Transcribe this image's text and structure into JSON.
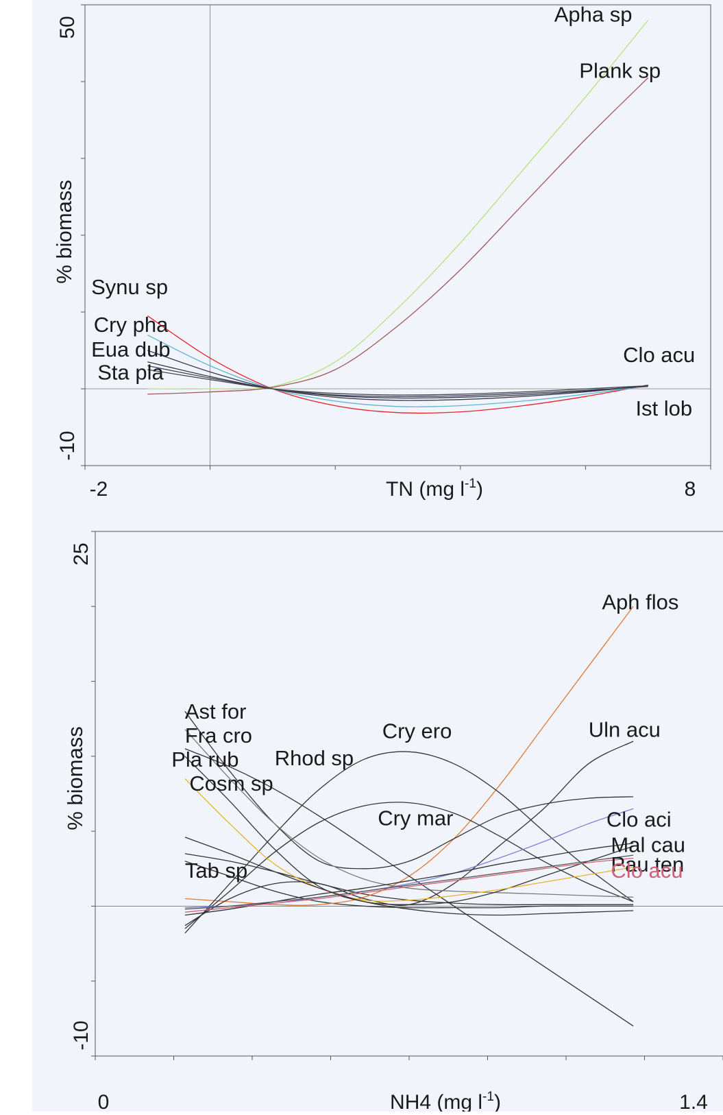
{
  "chart_data": [
    {
      "type": "line",
      "xlabel": "TN (mg l-1)",
      "xlabel_parts": {
        "main": "TN (mg l",
        "sup": "-1",
        "end": ")"
      },
      "ylabel": "% biomass",
      "xlim": [
        -2,
        8
      ],
      "ylim": [
        -10,
        50
      ],
      "x_tick_labels": [
        "-2",
        "8"
      ],
      "y_tick_labels": [
        "-10",
        "50"
      ],
      "reference_lines": {
        "x": 0,
        "y": 0
      },
      "series": [
        {
          "name": "Apha sp",
          "color": "#b6e27a",
          "x": [
            -1,
            0,
            1,
            2,
            3,
            4,
            5,
            6,
            7
          ],
          "y": [
            0,
            0,
            0.3,
            3.5,
            10.5,
            19,
            28.5,
            38,
            48
          ]
        },
        {
          "name": "Plank sp",
          "color": "#a0585c",
          "x": [
            -1,
            0,
            1,
            2,
            3,
            4,
            5,
            6,
            7
          ],
          "y": [
            -0.7,
            -0.4,
            0.2,
            2.5,
            8.2,
            15.5,
            24,
            32.5,
            40.5
          ]
        },
        {
          "name": "Synu sp",
          "color": "#e8202a",
          "x": [
            -1,
            0,
            1,
            2,
            3,
            4,
            5,
            6,
            7
          ],
          "y": [
            9.5,
            4,
            0,
            -2.2,
            -3.1,
            -3,
            -2.2,
            -1,
            0.5
          ]
        },
        {
          "name": "Cry pha",
          "color": "#5fb4cf",
          "x": [
            -1,
            0,
            1,
            2,
            3,
            4,
            5,
            6,
            7
          ],
          "y": [
            7,
            3,
            0,
            -1.6,
            -2.3,
            -2.2,
            -1.6,
            -0.7,
            0.4
          ]
        },
        {
          "name": "Eua dub",
          "color": "#3a3a50",
          "x": [
            -1,
            0,
            1,
            2,
            3,
            4,
            5,
            6,
            7
          ],
          "y": [
            5,
            2.2,
            0,
            -1.1,
            -1.5,
            -1.4,
            -1,
            -0.4,
            0.4
          ]
        },
        {
          "name": "Sta pla",
          "color": "#333333",
          "x": [
            -1,
            0,
            1,
            2,
            3,
            4,
            5,
            6,
            7
          ],
          "y": [
            3.5,
            1.6,
            0,
            -0.9,
            -1.2,
            -1.1,
            -0.8,
            -0.3,
            0.4
          ]
        },
        {
          "name": "Ist lob",
          "color": "#3b3b5e",
          "x": [
            -1,
            0,
            1,
            2,
            3,
            4,
            5,
            6,
            7
          ],
          "y": [
            3,
            1.4,
            0,
            -0.8,
            -1,
            -0.9,
            -0.6,
            -0.2,
            0.3
          ]
        },
        {
          "name": "Clo acu",
          "color": "#444444",
          "x": [
            -1,
            0,
            1,
            2,
            3,
            4,
            5,
            6,
            7
          ],
          "y": [
            2.5,
            1.2,
            0,
            -0.6,
            -0.8,
            -0.7,
            -0.4,
            0,
            0.4
          ]
        }
      ],
      "labels": [
        {
          "text": "Apha sp",
          "x": 5.5,
          "y": 47.8
        },
        {
          "text": "Plank sp",
          "x": 5.9,
          "y": 40.5
        },
        {
          "text": "Synu sp",
          "x": -1.9,
          "y": 12.3
        },
        {
          "text": "Cry pha",
          "x": -1.86,
          "y": 7.4
        },
        {
          "text": "Eua dub",
          "x": -1.9,
          "y": 4.2
        },
        {
          "text": "Sta pla",
          "x": -1.8,
          "y": 1.2
        },
        {
          "text": "Clo acu",
          "x": 6.6,
          "y": 3.5
        },
        {
          "text": "Ist lob",
          "x": 6.8,
          "y": -3.5
        }
      ]
    },
    {
      "type": "line",
      "xlabel": "NH4 (mg l-1)",
      "xlabel_parts": {
        "main": "NH4 (mg l",
        "sup": "-1",
        "end": ")"
      },
      "ylabel": "% biomass",
      "xlim": [
        0,
        1.4
      ],
      "ylim": [
        -10,
        25
      ],
      "x_tick_labels": [
        "0",
        "1.4"
      ],
      "y_tick_labels": [
        "-10",
        "25"
      ],
      "reference_lines": {
        "y": 0
      },
      "series": [
        {
          "name": "Aph flos",
          "color": "#e07830",
          "x": [
            0.2,
            0.3,
            0.4,
            0.5,
            0.6,
            0.7,
            0.8,
            0.9,
            1.0,
            1.1,
            1.2
          ],
          "y": [
            0.5,
            0.3,
            0.1,
            0.1,
            0.6,
            2,
            4.5,
            8,
            12,
            16,
            20
          ]
        },
        {
          "name": "Uln acu",
          "color": "#333333",
          "x": [
            0.2,
            0.3,
            0.4,
            0.5,
            0.6,
            0.7,
            0.8,
            0.9,
            1.0,
            1.1,
            1.2
          ],
          "y": [
            -1.3,
            0.5,
            1.5,
            1.5,
            0.5,
            0.1,
            1.5,
            4,
            6.5,
            9.5,
            11
          ]
        },
        {
          "name": "Cry ero",
          "color": "#333333",
          "x": [
            0.2,
            0.3,
            0.4,
            0.5,
            0.6,
            0.7,
            0.8,
            0.9,
            1.0,
            1.1,
            1.2
          ],
          "y": [
            -1.8,
            1.5,
            4.8,
            7.8,
            9.8,
            10.3,
            9.5,
            7.6,
            5,
            2.5,
            0.3
          ]
        },
        {
          "name": "Cry mar",
          "color": "#333333",
          "x": [
            0.2,
            0.3,
            0.4,
            0.5,
            0.6,
            0.7,
            0.8,
            0.9,
            1.0,
            1.1,
            1.2
          ],
          "y": [
            -1.5,
            1,
            3.6,
            5.6,
            6.7,
            6.9,
            6.2,
            4.7,
            3,
            1.5,
            0.3
          ]
        },
        {
          "name": "Ast for",
          "color": "#333333",
          "x": [
            0.2,
            0.3,
            0.4,
            0.5,
            0.6,
            0.7,
            0.8,
            0.9,
            1.0,
            1.1,
            1.2
          ],
          "y": [
            13,
            9,
            5.5,
            3,
            2.5,
            3,
            4.5,
            6,
            6.8,
            7.2,
            7.3
          ]
        },
        {
          "name": "Fra cro",
          "color": "#7a7a7a",
          "x": [
            0.2,
            0.3,
            0.4,
            0.5,
            0.6,
            0.7,
            0.8,
            0.9,
            1.0,
            1.1,
            1.2
          ],
          "y": [
            11.8,
            8.5,
            5.5,
            3.2,
            1.8,
            1.2,
            1,
            0.9,
            0.8,
            0.7,
            0.6
          ]
        },
        {
          "name": "Rhod sp",
          "color": "#333333",
          "x": [
            0.2,
            0.3,
            0.4,
            0.5,
            0.6,
            0.7,
            0.8,
            0.9,
            1.0,
            1.1,
            1.2
          ],
          "y": [
            10.5,
            9.3,
            7.8,
            6,
            4,
            2,
            0,
            -2,
            -4,
            -6,
            -8
          ]
        },
        {
          "name": "Pla rub",
          "color": "#333333",
          "x": [
            0.2,
            0.3,
            0.4,
            0.5,
            0.6,
            0.7,
            0.8,
            0.9,
            1.0,
            1.1,
            1.2
          ],
          "y": [
            10,
            7,
            3.8,
            1.3,
            0.3,
            0.1,
            0.3,
            1,
            2,
            3,
            4
          ]
        },
        {
          "name": "Cosm sp",
          "color": "#e8b22a",
          "x": [
            0.2,
            0.3,
            0.4,
            0.5,
            0.6,
            0.7,
            0.8,
            0.9,
            1.0,
            1.1,
            1.2
          ],
          "y": [
            8.5,
            5.5,
            2.8,
            1.2,
            0.4,
            0.4,
            0.7,
            1.1,
            1.6,
            2.1,
            2.6
          ]
        },
        {
          "name": "Clo aci",
          "color": "#7b7fd8",
          "x": [
            0.2,
            0.3,
            0.4,
            0.5,
            0.6,
            0.7,
            0.8,
            0.9,
            1.0,
            1.1,
            1.2
          ],
          "y": [
            -0.1,
            0,
            0.2,
            0.6,
            1,
            1.5,
            2.2,
            3.2,
            4.3,
            5.5,
            6.5
          ]
        },
        {
          "name": "Mal cau",
          "color": "#333333",
          "x": [
            0.2,
            0.3,
            0.4,
            0.5,
            0.6,
            0.7,
            0.8,
            0.9,
            1.0,
            1.1,
            1.2
          ],
          "y": [
            -0.6,
            -0.2,
            0.3,
            0.8,
            1.2,
            1.7,
            2.2,
            2.8,
            3.3,
            3.8,
            4.2
          ]
        },
        {
          "name": "Pau ten",
          "color": "#555555",
          "x": [
            0.2,
            0.3,
            0.4,
            0.5,
            0.6,
            0.7,
            0.8,
            0.9,
            1.0,
            1.1,
            1.2
          ],
          "y": [
            -0.2,
            0,
            0.3,
            0.6,
            1,
            1.4,
            1.8,
            2.2,
            2.6,
            3,
            3.4
          ]
        },
        {
          "name": "Clo acu",
          "color": "#d06078",
          "x": [
            0.2,
            0.3,
            0.4,
            0.5,
            0.6,
            0.7,
            0.8,
            0.9,
            1.0,
            1.1,
            1.2
          ],
          "y": [
            -0.4,
            -0.1,
            0.2,
            0.5,
            0.9,
            1.3,
            1.7,
            2.1,
            2.5,
            2.9,
            3.2
          ]
        },
        {
          "name": "Tab sp",
          "color": "#333333",
          "x": [
            0.2,
            0.3,
            0.4,
            0.5,
            0.6,
            0.7,
            0.8,
            0.9,
            1.0,
            1.1,
            1.2
          ],
          "y": [
            4.6,
            3.5,
            2.3,
            1.2,
            0.3,
            -0.2,
            -0.5,
            -0.6,
            -0.5,
            -0.4,
            -0.3
          ]
        }
      ],
      "extra_lines": [
        {
          "color": "#333333",
          "x": [
            0.2,
            0.3,
            0.4,
            0.5,
            0.6,
            0.7,
            0.8,
            0.9,
            1.0,
            1.1,
            1.2
          ],
          "y": [
            3.5,
            3,
            2.3,
            1.5,
            0.8,
            0.4,
            0.2,
            0.1,
            0.1,
            0.1,
            0.1
          ]
        },
        {
          "color": "#333333",
          "x": [
            0.2,
            0.3,
            0.4,
            0.5,
            0.6,
            0.7,
            0.8,
            0.9,
            1.0,
            1.1,
            1.2
          ],
          "y": [
            3,
            2,
            1,
            0.3,
            0,
            -0.1,
            -0.1,
            -0.1,
            0,
            0,
            0
          ]
        }
      ],
      "labels": [
        {
          "text": "Aph flos",
          "x": 1.13,
          "y": 19.8
        },
        {
          "text": "Uln acu",
          "x": 1.1,
          "y": 11.3
        },
        {
          "text": "Cry ero",
          "x": 0.64,
          "y": 11.2
        },
        {
          "text": "Cry mar",
          "x": 0.63,
          "y": 5.4
        },
        {
          "text": "Ast for",
          "x": 0.2,
          "y": 12.5
        },
        {
          "text": "Fra cro",
          "x": 0.2,
          "y": 10.9
        },
        {
          "text": "Rhod sp",
          "x": 0.4,
          "y": 9.4
        },
        {
          "text": "Pla rub",
          "x": 0.17,
          "y": 9.3
        },
        {
          "text": "Cosm sp",
          "x": 0.21,
          "y": 7.7
        },
        {
          "text": "Clo aci",
          "x": 1.14,
          "y": 5.3
        },
        {
          "text": "Mal cau",
          "x": 1.15,
          "y": 3.6
        },
        {
          "text": "Pau ten",
          "x": 1.15,
          "y": 2.3
        },
        {
          "text": "Clo acu",
          "x": 1.15,
          "y": 1.9
        },
        {
          "text": "Tab sp",
          "x": 0.2,
          "y": 1.9
        }
      ]
    }
  ]
}
